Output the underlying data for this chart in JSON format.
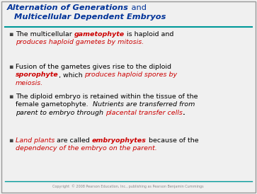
{
  "title_line1": "Alternation of Generations",
  "title_line1_suffix": " and",
  "title_line2": "Multicellular Dependent Embryos",
  "title_color": "#003399",
  "teal_line_color": "#009999",
  "background_color": "#f0f0f0",
  "border_color": "#999999",
  "bullet_color": "#444444",
  "copyright_text": "Copyright  © 2008 Pearson Education, Inc., publishing as Pearson Benjamin Cummings",
  "body_font_size": 6.8,
  "title_font_size": 8.2,
  "bullets": [
    {
      "segments": [
        {
          "text": "The multicellular ",
          "bold": false,
          "italic": false,
          "color": "#000000"
        },
        {
          "text": "gametophyte",
          "bold": true,
          "italic": true,
          "color": "#cc0000"
        },
        {
          "text": " is haploid and\n",
          "bold": false,
          "italic": false,
          "color": "#000000"
        },
        {
          "text": "produces haploid gametes by mitosis.",
          "bold": false,
          "italic": true,
          "color": "#cc0000"
        }
      ]
    },
    {
      "segments": [
        {
          "text": "Fusion of the gametes gives rise to the diploid\n",
          "bold": false,
          "italic": false,
          "color": "#000000"
        },
        {
          "text": "sporophyte",
          "bold": true,
          "italic": true,
          "color": "#cc0000"
        },
        {
          "text": ", which ",
          "bold": false,
          "italic": false,
          "color": "#000000"
        },
        {
          "text": "produces haploid spores by\nmeiosis.",
          "bold": false,
          "italic": true,
          "color": "#cc0000"
        }
      ]
    },
    {
      "segments": [
        {
          "text": "The diploid embryo is retained within the tissue of the\nfemale gametophyte.  ",
          "bold": false,
          "italic": false,
          "color": "#000000"
        },
        {
          "text": "Nutrients are transferred from\nparent to embryo through ",
          "bold": false,
          "italic": true,
          "color": "#000000"
        },
        {
          "text": "placental transfer cells",
          "bold": false,
          "italic": true,
          "color": "#cc0000"
        },
        {
          "text": ".",
          "bold": true,
          "italic": false,
          "color": "#000000"
        }
      ]
    },
    {
      "segments": [
        {
          "text": "Land plants",
          "bold": false,
          "italic": true,
          "color": "#cc0000"
        },
        {
          "text": " are called ",
          "bold": false,
          "italic": false,
          "color": "#000000"
        },
        {
          "text": "embryophytes",
          "bold": true,
          "italic": true,
          "color": "#cc0000"
        },
        {
          "text": " because of the\n",
          "bold": false,
          "italic": false,
          "color": "#000000"
        },
        {
          "text": "dependency of the embryo on the parent.",
          "bold": false,
          "italic": true,
          "color": "#cc0000"
        }
      ]
    }
  ]
}
